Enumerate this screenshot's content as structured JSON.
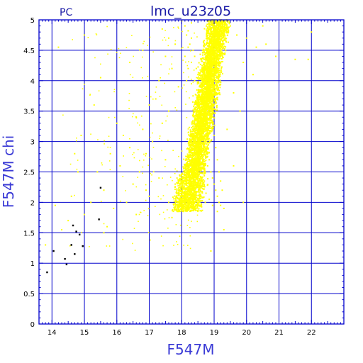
{
  "chart_data": {
    "type": "scatter",
    "title": "lmc_u23z05",
    "corner_label": "PC",
    "xlabel": "F547M",
    "ylabel": "F547M  chi",
    "xlim": [
      13.6,
      23.0
    ],
    "ylim": [
      0,
      5
    ],
    "grid": true,
    "x_ticks": [
      14,
      15,
      16,
      17,
      18,
      19,
      20,
      21,
      22
    ],
    "y_ticks": [
      0,
      0.5,
      1,
      1.5,
      2,
      2.5,
      3,
      3.5,
      4,
      4.5,
      5
    ],
    "x_tick_labels": [
      "14",
      "15",
      "16",
      "17",
      "18",
      "19",
      "20",
      "21",
      "22"
    ],
    "y_tick_labels": [
      "0",
      "0.5",
      "1",
      "1.5",
      "2",
      "2.5",
      "3",
      "3.5",
      "4",
      "4.5",
      "5"
    ],
    "colors": {
      "main_points": "#ffff00",
      "highlight_points": "#000000",
      "grid": "#0000cc",
      "frame": "#0000cc",
      "text": "#1a1aa6",
      "axis_title": "#3b3bd6"
    },
    "series": [
      {
        "values_note": "",
        "points": [
          [
            18.0,
            4.98
          ],
          [
            18.1,
            4.9
          ],
          [
            18.2,
            4.82
          ],
          [
            18.15,
            4.75
          ],
          [
            18.3,
            4.7
          ],
          [
            18.25,
            4.6
          ],
          [
            18.35,
            4.5
          ],
          [
            18.4,
            4.4
          ],
          [
            18.3,
            4.3
          ],
          [
            18.45,
            4.2
          ],
          [
            18.5,
            4.1
          ],
          [
            18.4,
            4.0
          ],
          [
            18.55,
            3.9
          ],
          [
            18.5,
            3.8
          ],
          [
            18.6,
            3.7
          ],
          [
            18.55,
            3.6
          ],
          [
            18.65,
            3.5
          ],
          [
            18.6,
            3.4
          ],
          [
            18.7,
            3.3
          ],
          [
            18.65,
            3.2
          ],
          [
            18.75,
            3.1
          ],
          [
            18.7,
            3.0
          ],
          [
            18.8,
            2.9
          ],
          [
            18.75,
            2.8
          ],
          [
            18.85,
            2.7
          ],
          [
            18.8,
            2.6
          ],
          [
            18.9,
            2.5
          ],
          [
            18.95,
            2.4
          ],
          [
            19.0,
            2.3
          ],
          [
            19.05,
            2.2
          ],
          [
            19.1,
            2.1
          ],
          [
            19.15,
            2.0
          ],
          [
            19.2,
            1.95
          ],
          [
            19.3,
            1.9
          ],
          [
            18.2,
            4.55
          ],
          [
            18.3,
            4.95
          ],
          [
            18.1,
            4.4
          ],
          [
            18.2,
            4.2
          ],
          [
            18.15,
            4.0
          ],
          [
            18.3,
            3.95
          ],
          [
            18.35,
            3.75
          ],
          [
            18.4,
            3.55
          ],
          [
            18.45,
            3.35
          ],
          [
            18.5,
            3.15
          ],
          [
            18.55,
            2.95
          ],
          [
            18.6,
            2.75
          ],
          [
            18.65,
            2.55
          ],
          [
            18.7,
            2.35
          ],
          [
            18.75,
            2.15
          ],
          [
            18.85,
            2.05
          ],
          [
            18.95,
            1.95
          ],
          [
            19.1,
            1.85
          ],
          [
            18.9,
            3.5
          ],
          [
            18.95,
            3.3
          ],
          [
            19.0,
            3.1
          ],
          [
            19.05,
            2.9
          ],
          [
            19.1,
            2.7
          ],
          [
            19.15,
            2.5
          ],
          [
            19.2,
            2.35
          ],
          [
            19.25,
            2.2
          ],
          [
            18.8,
            3.9
          ],
          [
            18.85,
            3.7
          ],
          [
            18.7,
            4.2
          ],
          [
            18.6,
            4.35
          ],
          [
            17.4,
            4.85
          ],
          [
            17.6,
            4.7
          ],
          [
            17.5,
            4.4
          ],
          [
            17.8,
            4.6
          ],
          [
            17.7,
            4.2
          ],
          [
            17.3,
            4.0
          ],
          [
            17.9,
            3.9
          ],
          [
            17.2,
            3.7
          ],
          [
            17.6,
            3.5
          ],
          [
            17.0,
            3.6
          ],
          [
            17.4,
            3.3
          ],
          [
            16.8,
            3.2
          ],
          [
            16.6,
            3.4
          ],
          [
            17.1,
            3.0
          ],
          [
            16.9,
            2.8
          ],
          [
            16.4,
            2.9
          ],
          [
            17.5,
            2.7
          ],
          [
            16.2,
            3.1
          ],
          [
            16.0,
            3.3
          ],
          [
            16.7,
            2.5
          ],
          [
            17.3,
            2.4
          ],
          [
            16.5,
            2.3
          ],
          [
            17.8,
            2.3
          ],
          [
            16.1,
            2.6
          ],
          [
            15.8,
            2.8
          ],
          [
            15.6,
            2.2
          ],
          [
            16.3,
            2.0
          ],
          [
            17.0,
            2.1
          ],
          [
            17.6,
            2.0
          ],
          [
            15.4,
            2.5
          ],
          [
            15.9,
            1.9
          ],
          [
            16.6,
            1.8
          ],
          [
            15.2,
            2.0
          ],
          [
            15.0,
            1.8
          ],
          [
            15.7,
            1.6
          ],
          [
            14.8,
            2.5
          ],
          [
            14.6,
            2.1
          ],
          [
            14.5,
            1.7
          ],
          [
            14.3,
            1.55
          ],
          [
            14.1,
            1.95
          ],
          [
            13.8,
            1.3
          ],
          [
            14.9,
            3.1
          ],
          [
            15.3,
            3.6
          ],
          [
            15.5,
            4.05
          ],
          [
            16.4,
            4.3
          ],
          [
            16.8,
            4.5
          ],
          [
            18.9,
            1.2
          ],
          [
            19.3,
            1.55
          ],
          [
            19.6,
            3.8
          ],
          [
            19.8,
            3.5
          ],
          [
            19.9,
            4.3
          ],
          [
            20.2,
            4.1
          ],
          [
            20.0,
            4.7
          ],
          [
            20.3,
            4.55
          ],
          [
            20.6,
            4.6
          ],
          [
            20.9,
            4.4
          ],
          [
            21.5,
            4.35
          ],
          [
            21.9,
            4.35
          ],
          [
            22.0,
            4.8
          ],
          [
            19.5,
            4.9
          ],
          [
            19.7,
            4.75
          ],
          [
            19.4,
            3.2
          ],
          [
            19.6,
            2.6
          ],
          [
            19.9,
            2.0
          ],
          [
            20.5,
            4.9
          ],
          [
            19.1,
            4.6
          ],
          [
            15.0,
            4.75
          ],
          [
            14.2,
            4.55
          ],
          [
            15.6,
            1.5
          ],
          [
            16.9,
            2.2
          ],
          [
            17.7,
            1.75
          ],
          [
            14.7,
            2.8
          ]
        ]
      },
      {
        "values_note": "",
        "points": [
          [
            13.85,
            0.85
          ],
          [
            14.05,
            1.2
          ],
          [
            14.4,
            1.07
          ],
          [
            14.45,
            0.98
          ],
          [
            14.6,
            1.3
          ],
          [
            14.7,
            1.15
          ],
          [
            14.75,
            1.52
          ],
          [
            14.85,
            1.47
          ],
          [
            14.95,
            1.28
          ],
          [
            15.45,
            1.72
          ],
          [
            15.5,
            2.24
          ],
          [
            14.65,
            1.62
          ]
        ]
      }
    ]
  }
}
